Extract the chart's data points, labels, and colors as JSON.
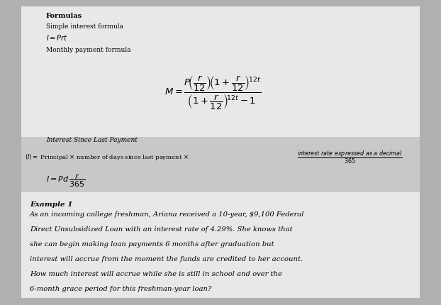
{
  "outer_bg": "#b0b0b0",
  "paper_bg": "#e8e8e8",
  "box_bg": "#c8c8c8",
  "title": "Formulas",
  "simple_label": "Simple interest formula",
  "simple_formula": "$I = Prt$",
  "monthly_label": "Monthly payment formula",
  "monthly_formula": "$M = \\dfrac{P\\!\\left(\\dfrac{r}{12}\\right)\\!\\left(1+\\dfrac{r}{12}\\right)^{\\!12t}}{\\left(1+\\dfrac{r}{12}\\right)^{\\!12t}-1}$",
  "interest_label": "Interest Since Last Payment",
  "interest_line1_left": "$(I) = $ Principal $\\times$ number of days since last payment $\\times$",
  "interest_line1_frac": "$\\dfrac{\\mathit{interest\\ rate\\ expressed\\ as\\ a\\ decimal}}{365}$",
  "interest_formula": "$I = Pd\\,\\dfrac{r}{365}$",
  "example_title": "Example 1",
  "example_text_lines": [
    "As an incoming college freshman, Ariana received a 10-year, $9,100 Federal",
    "Direct Unsubsidized Loan with an interest rate of 4.29%. She knows that",
    "she can begin making loan payments 6 months after graduation but",
    "interest will accrue from the moment the funds are credited to her account.",
    "How much interest will accrue while she is still in school and over the",
    "6-month grace period for this freshman-year loan?"
  ],
  "fig_width": 6.22,
  "fig_height": 4.31,
  "dpi": 100
}
